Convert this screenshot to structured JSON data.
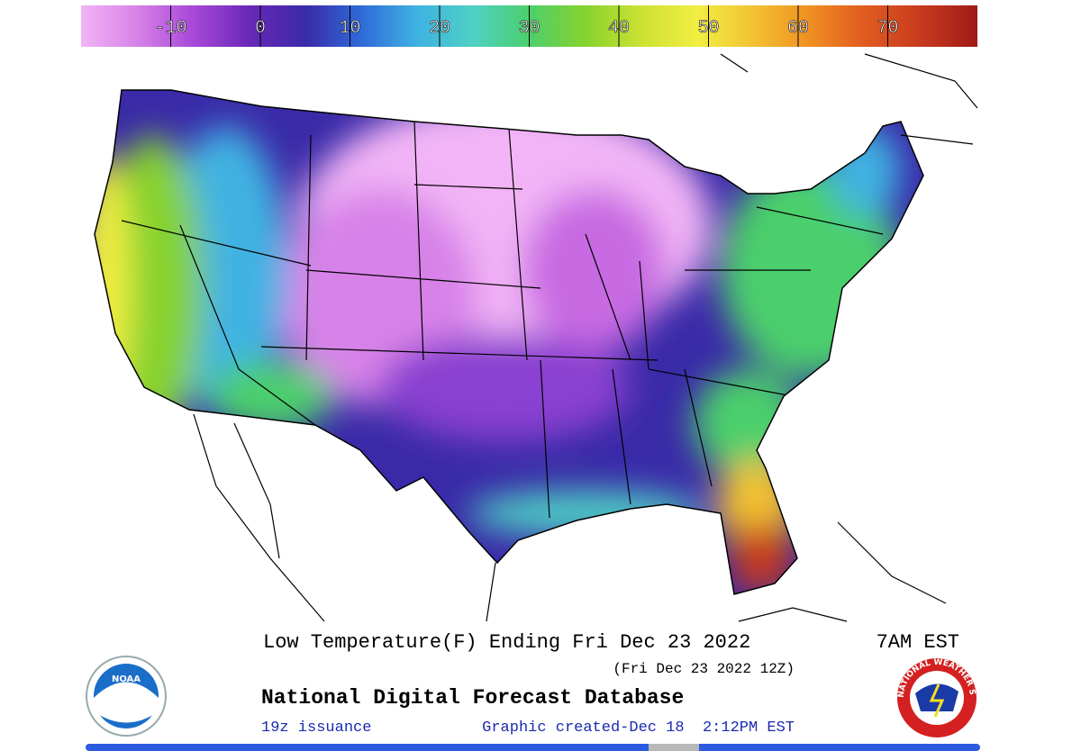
{
  "colorbar": {
    "range": [
      -20,
      80
    ],
    "ticks": [
      -10,
      0,
      10,
      20,
      30,
      40,
      50,
      60,
      70
    ],
    "colors": [
      "#f2b4f6",
      "#d782e8",
      "#a848d8",
      "#6a28b8",
      "#3a2aa8",
      "#2f6ad8",
      "#3fb2e2",
      "#4ed0c4",
      "#4ccf6c",
      "#86d22e",
      "#cce232",
      "#f2ee42",
      "#f2c232",
      "#f09022",
      "#e05a20",
      "#c83a1e",
      "#a01a16"
    ]
  },
  "map": {
    "title": "Low Temperature(F) Ending Fri Dec 23 2022",
    "time": "7AM EST",
    "utc": "(Fri Dec 23 2022 12Z)",
    "source": "National Digital Forecast Database",
    "issuance": "19z issuance",
    "created": "Graphic created-Dec 18  2:12PM EST"
  },
  "logos": {
    "left": "NOAA",
    "right": "NATIONAL WEATHER SERVICE"
  }
}
